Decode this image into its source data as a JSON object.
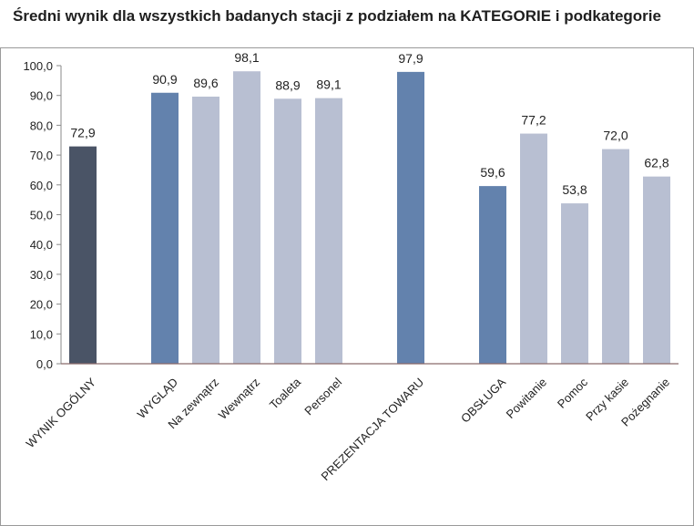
{
  "chart_data": {
    "type": "bar",
    "title": "Średni wynik dla wszystkich badanych stacji z podziałem na KATEGORIE i podkategorie",
    "xlabel": "",
    "ylabel": "",
    "ylim": [
      0,
      100
    ],
    "yticks": [
      "0,0",
      "10,0",
      "20,0",
      "30,0",
      "40,0",
      "50,0",
      "60,0",
      "70,0",
      "80,0",
      "90,0",
      "100,0"
    ],
    "grid": false,
    "legend": "none",
    "categories": [
      "WYNIK OGÓLNY",
      "WYGLĄD",
      "Na zewnątrz",
      "Wewnątrz",
      "Toaleta",
      "Personel",
      "PREZENTACJA TOWARU",
      "OBSŁUGA",
      "Powitanie",
      "Pomoc",
      "Przy kasie",
      "Pożegnanie"
    ],
    "values": [
      72.9,
      90.9,
      89.6,
      98.1,
      88.9,
      89.1,
      97.9,
      59.6,
      77.2,
      53.8,
      72.0,
      62.8
    ],
    "value_labels": [
      "72,9",
      "90,9",
      "89,6",
      "98,1",
      "88,9",
      "89,1",
      "97,9",
      "59,6",
      "77,2",
      "53,8",
      "72,0",
      "62,8"
    ],
    "bar_roles": [
      "overall",
      "category",
      "sub",
      "sub",
      "sub",
      "sub",
      "category",
      "category",
      "sub",
      "sub",
      "sub",
      "sub"
    ],
    "colors": {
      "overall": "#4a5466",
      "category": "#6382ad",
      "sub": "#b8bfd2",
      "axis": "#8b6a6a",
      "frame": "#9a9a9a"
    }
  }
}
